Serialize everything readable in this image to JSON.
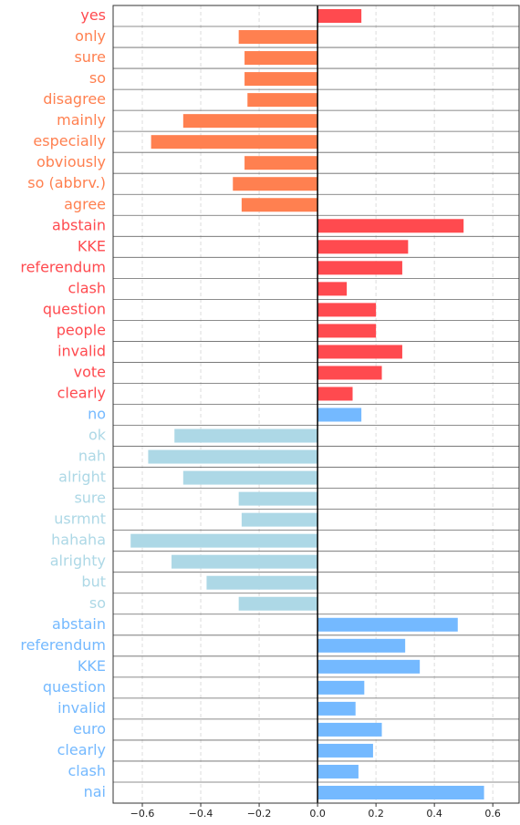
{
  "chart_data": {
    "type": "barh",
    "categories": [
      "yes",
      "only",
      "sure",
      "so",
      "disagree",
      "mainly",
      "especially",
      "obviously",
      "so (abbrv.)",
      "agree",
      "abstain",
      "KKE",
      "referendum",
      "clash",
      "question",
      "people",
      "invalid",
      "vote",
      "clearly",
      "no",
      "ok",
      "nah",
      "alright",
      "sure",
      "usrmnt",
      "hahaha",
      "alrighty",
      "but",
      "so",
      "abstain",
      "referendum",
      "KKE",
      "question",
      "invalid",
      "euro",
      "clearly",
      "clash",
      "nai"
    ],
    "values": [
      0.15,
      -0.27,
      -0.25,
      -0.25,
      -0.24,
      -0.46,
      -0.57,
      -0.25,
      -0.29,
      -0.26,
      0.5,
      0.31,
      0.29,
      0.1,
      0.2,
      0.2,
      0.29,
      0.22,
      0.12,
      0.15,
      -0.49,
      -0.58,
      -0.46,
      -0.27,
      -0.26,
      -0.64,
      -0.5,
      -0.38,
      -0.27,
      0.48,
      0.3,
      0.35,
      0.16,
      0.13,
      0.22,
      0.19,
      0.14,
      0.57
    ],
    "colors": [
      "#ff4a4f",
      "#ff8050",
      "#ff8050",
      "#ff8050",
      "#ff8050",
      "#ff8050",
      "#ff8050",
      "#ff8050",
      "#ff8050",
      "#ff8050",
      "#ff4a4f",
      "#ff4a4f",
      "#ff4a4f",
      "#ff4a4f",
      "#ff4a4f",
      "#ff4a4f",
      "#ff4a4f",
      "#ff4a4f",
      "#ff4a4f",
      "#74b9ff",
      "#add8e6",
      "#add8e6",
      "#add8e6",
      "#add8e6",
      "#add8e6",
      "#add8e6",
      "#add8e6",
      "#add8e6",
      "#add8e6",
      "#74b9ff",
      "#74b9ff",
      "#74b9ff",
      "#74b9ff",
      "#74b9ff",
      "#74b9ff",
      "#74b9ff",
      "#74b9ff",
      "#74b9ff"
    ],
    "xlim": [
      -0.7,
      0.69
    ],
    "xticks": [
      {
        "value": -0.6,
        "label": "−0.6"
      },
      {
        "value": -0.4,
        "label": "−0.4"
      },
      {
        "value": -0.2,
        "label": "−0.2"
      },
      {
        "value": 0,
        "label": "0.0"
      },
      0.2,
      0.4,
      0.6
    ],
    "grid": true
  }
}
